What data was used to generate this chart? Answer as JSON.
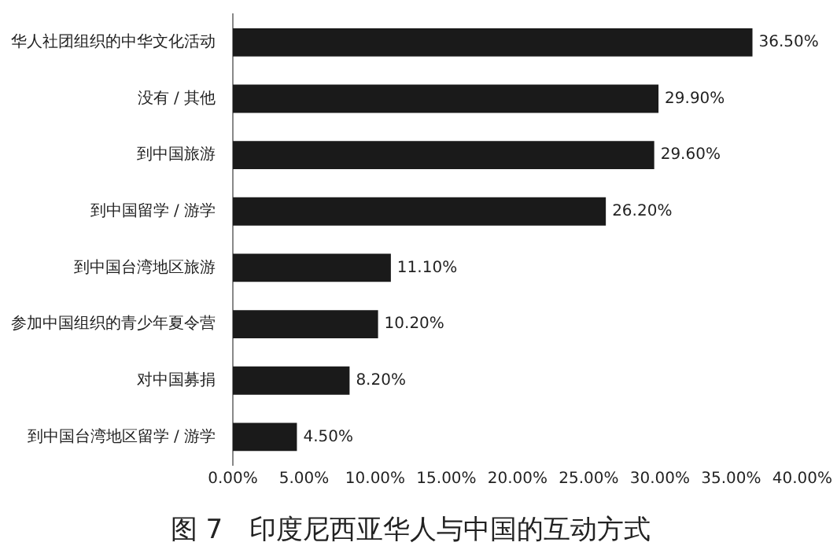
{
  "chart_data": {
    "type": "bar",
    "orientation": "horizontal",
    "title": "图 7　印度尼西亚华人与中国的互动方式",
    "categories": [
      "华人社团组织的中华文化活动",
      "没有 / 其他",
      "到中国旅游",
      "到中国留学 / 游学",
      "到中国台湾地区旅游",
      "参加中国组织的青少年夏令营",
      "对中国募捐",
      "到中国台湾地区留学 / 游学"
    ],
    "values": [
      36.5,
      29.9,
      29.6,
      26.2,
      11.1,
      10.2,
      8.2,
      4.5
    ],
    "value_labels": [
      "36.50%",
      "29.90%",
      "29.60%",
      "26.20%",
      "11.10%",
      "10.20%",
      "8.20%",
      "4.50%"
    ],
    "color": "#1a1a1a",
    "xlim": [
      0,
      40
    ],
    "xticks": [
      {
        "value": 0,
        "label": "0.00%"
      },
      {
        "value": 5,
        "label": "5.00%"
      },
      {
        "value": 10,
        "label": "10.00%"
      },
      {
        "value": 15,
        "label": "15.00%"
      },
      {
        "value": 20,
        "label": "20.00%"
      },
      {
        "value": 25,
        "label": "25.00%"
      },
      {
        "value": 30,
        "label": "30.00%"
      },
      {
        "value": 35,
        "label": "35.00%"
      },
      {
        "value": 40,
        "label": "40.00%"
      }
    ],
    "grid": false,
    "legend": false
  }
}
